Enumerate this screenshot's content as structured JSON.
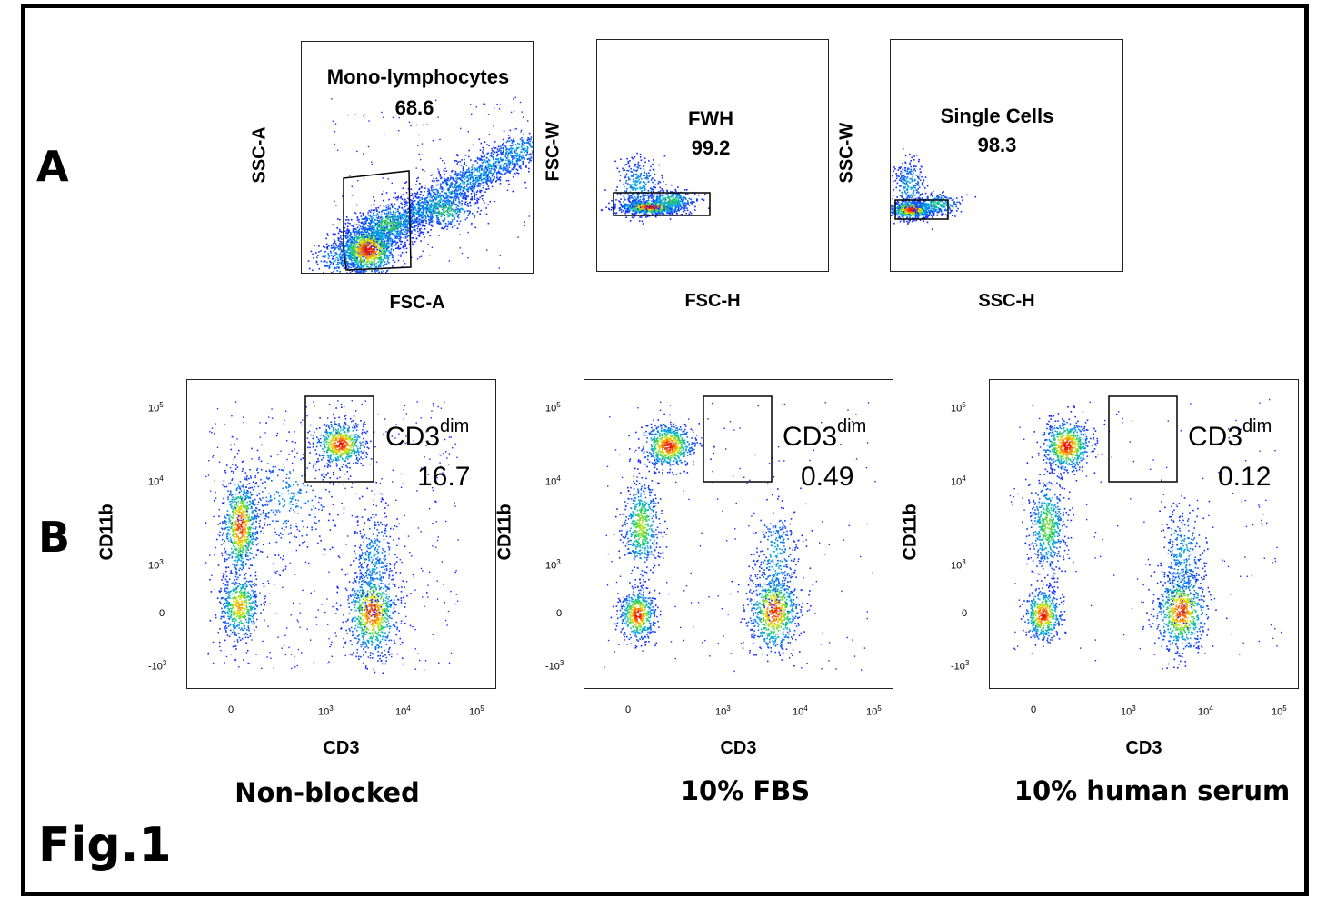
{
  "panel_labels": {
    "a": "A",
    "b": "B"
  },
  "figure_label": "Fig.1",
  "chart_data": [
    {
      "type": "scatter",
      "panel": "A",
      "xlabel": "FSC-A",
      "ylabel": "SSC-A",
      "gate": {
        "name": "Mono-lymphocytes",
        "value": "68.6"
      }
    },
    {
      "type": "scatter",
      "panel": "A",
      "xlabel": "FSC-H",
      "ylabel": "FSC-W",
      "gate": {
        "name": "FWH",
        "value": "99.2"
      }
    },
    {
      "type": "scatter",
      "panel": "A",
      "xlabel": "SSC-H",
      "ylabel": "SSC-W",
      "gate": {
        "name": "Single Cells",
        "value": "98.3"
      }
    },
    {
      "type": "scatter",
      "panel": "B",
      "xlabel": "CD3",
      "ylabel": "CD11b",
      "condition": "Non-blocked",
      "gate": {
        "name": "CD3",
        "superscript": "dim",
        "value": "16.7"
      },
      "x_ticks": [
        "0",
        "10",
        "10",
        "10"
      ],
      "x_tick_exponents": [
        "",
        "3",
        "4",
        "5"
      ],
      "y_ticks": [
        "-10",
        "0",
        "10",
        "10",
        "10"
      ],
      "y_tick_exponents": [
        "3",
        "",
        "3",
        "4",
        "5"
      ],
      "populations": [
        {
          "cd3": 0,
          "cd11b": 3000,
          "density": "high"
        },
        {
          "cd3": 0,
          "cd11b": 0,
          "density": "high"
        },
        {
          "cd3": 5000,
          "cd11b": 0,
          "density": "high"
        },
        {
          "cd3": 1800,
          "cd11b": 30000,
          "density": "high"
        }
      ]
    },
    {
      "type": "scatter",
      "panel": "B",
      "xlabel": "CD3",
      "ylabel": "CD11b",
      "condition": "10% FBS",
      "gate": {
        "name": "CD3",
        "superscript": "dim",
        "value": "0.49"
      },
      "x_ticks": [
        "0",
        "10",
        "10",
        "10"
      ],
      "x_tick_exponents": [
        "",
        "3",
        "4",
        "5"
      ],
      "y_ticks": [
        "-10",
        "0",
        "10",
        "10",
        "10"
      ],
      "y_tick_exponents": [
        "3",
        "",
        "3",
        "4",
        "5"
      ],
      "populations": [
        {
          "cd3": 200,
          "cd11b": 30000,
          "density": "high"
        },
        {
          "cd3": 0,
          "cd11b": 3000,
          "density": "medium"
        },
        {
          "cd3": 0,
          "cd11b": 0,
          "density": "high"
        },
        {
          "cd3": 5000,
          "cd11b": 0,
          "density": "high"
        }
      ]
    },
    {
      "type": "scatter",
      "panel": "B",
      "xlabel": "CD3",
      "ylabel": "CD11b",
      "condition": "10% human serum",
      "gate": {
        "name": "CD3",
        "superscript": "dim",
        "value": "0.12"
      },
      "x_ticks": [
        "0",
        "10",
        "10",
        "10"
      ],
      "x_tick_exponents": [
        "",
        "3",
        "4",
        "5"
      ],
      "y_ticks": [
        "-10",
        "0",
        "10",
        "10",
        "10"
      ],
      "y_tick_exponents": [
        "3",
        "",
        "3",
        "4",
        "5"
      ],
      "populations": [
        {
          "cd3": 200,
          "cd11b": 30000,
          "density": "high"
        },
        {
          "cd3": 0,
          "cd11b": 3000,
          "density": "medium"
        },
        {
          "cd3": 0,
          "cd11b": 0,
          "density": "high"
        },
        {
          "cd3": 5000,
          "cd11b": 0,
          "density": "high"
        }
      ]
    }
  ]
}
